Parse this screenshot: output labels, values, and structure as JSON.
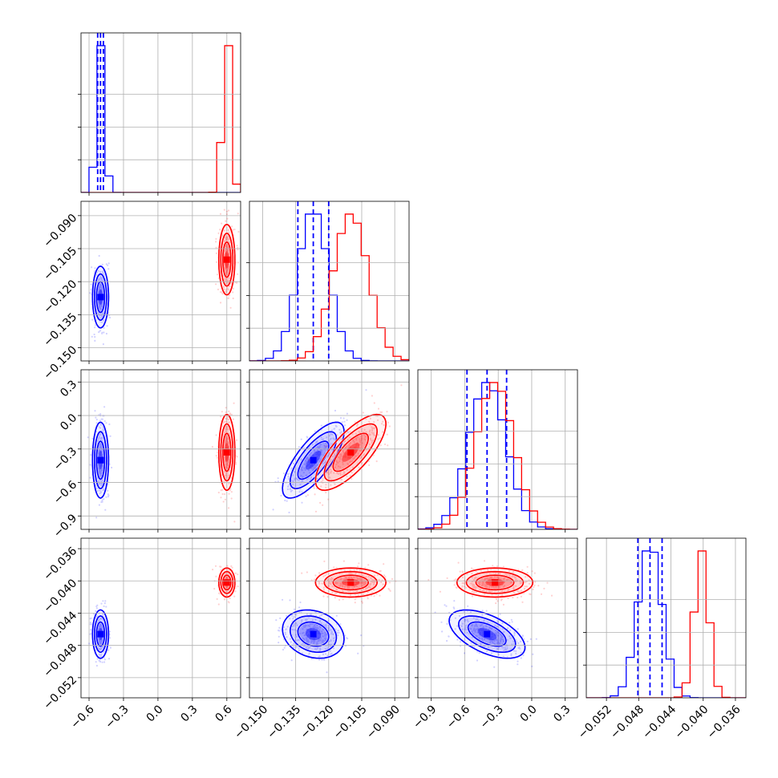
{
  "chart_data": {
    "type": "corner",
    "title": "",
    "grid": true,
    "legend": "none",
    "series": [
      {
        "color": "#0000ff",
        "mean": [
          -0.5,
          -0.127,
          -0.4,
          -0.0466
        ],
        "std": [
          0.035,
          0.007,
          0.17,
          0.0015
        ],
        "corr": [
          [
            1,
            0,
            0,
            0
          ],
          [
            0,
            1,
            0.75,
            -0.2
          ],
          [
            0,
            0.75,
            1,
            -0.55
          ],
          [
            0,
            -0.2,
            -0.55,
            1
          ]
        ],
        "quantiles": [
          [
            -0.525,
            -0.5,
            -0.475
          ],
          [
            -0.134,
            -0.127,
            -0.12
          ],
          [
            -0.58,
            -0.4,
            -0.225
          ],
          [
            -0.0481,
            -0.0466,
            -0.0451
          ]
        ]
      },
      {
        "color": "#ff0000",
        "mean": [
          0.6,
          -0.11,
          -0.33,
          -0.0402
        ],
        "std": [
          0.035,
          0.008,
          0.17,
          0.0009
        ],
        "corr": [
          [
            1,
            0,
            0,
            0
          ],
          [
            0,
            1,
            0.75,
            0
          ],
          [
            0,
            0.75,
            1,
            0
          ],
          [
            0,
            0,
            0,
            1
          ]
        ]
      }
    ],
    "panels": [
      {
        "ticks": [
          -0.6,
          -0.3,
          0.0,
          0.3,
          0.6
        ],
        "labels": [
          "−0.6",
          "−0.3",
          "0.0",
          "0.3",
          "0.6"
        ],
        "range": [
          -0.67,
          0.72
        ]
      },
      {
        "ticks": [
          -0.15,
          -0.135,
          -0.12,
          -0.105,
          -0.09
        ],
        "labels": [
          "−0.150",
          "−0.135",
          "−0.120",
          "−0.105",
          "−0.090"
        ],
        "range": [
          -0.156,
          -0.0835
        ]
      },
      {
        "ticks": [
          -0.9,
          -0.6,
          -0.3,
          0.0,
          0.3
        ],
        "labels": [
          "−0.9",
          "−0.6",
          "−0.3",
          "0.0",
          "0.3"
        ],
        "range": [
          -1.02,
          0.41
        ]
      },
      {
        "ticks": [
          -0.052,
          -0.048,
          -0.044,
          -0.04,
          -0.036
        ],
        "labels": [
          "−0.052",
          "−0.048",
          "−0.044",
          "−0.040",
          "−0.036"
        ],
        "range": [
          -0.0545,
          -0.0347
        ]
      }
    ]
  }
}
